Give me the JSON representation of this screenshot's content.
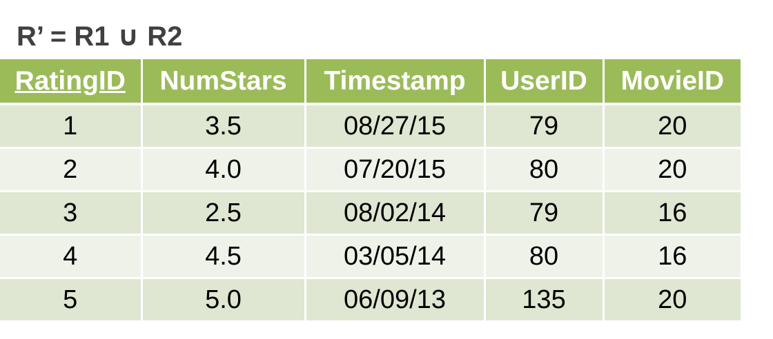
{
  "title": "R’ = R1 ∪ R2",
  "table": {
    "columns": [
      "RatingID",
      "NumStars",
      "Timestamp",
      "UserID",
      "MovieID"
    ],
    "rows": [
      [
        "1",
        "3.5",
        "08/27/15",
        "79",
        "20"
      ],
      [
        "2",
        "4.0",
        "07/20/15",
        "80",
        "20"
      ],
      [
        "3",
        "2.5",
        "08/02/14",
        "79",
        "16"
      ],
      [
        "4",
        "4.5",
        "03/05/14",
        "80",
        "16"
      ],
      [
        "5",
        "5.0",
        "06/09/13",
        "135",
        "20"
      ]
    ]
  },
  "colors": {
    "header_bg": "#9bbb59",
    "row_dark": "#dfe6d1",
    "row_light": "#eff2e9",
    "title_text": "#404040"
  }
}
